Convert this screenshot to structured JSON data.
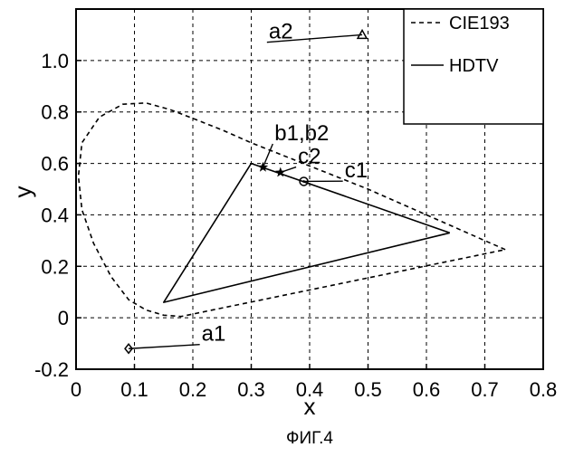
{
  "chart_data": {
    "type": "line",
    "caption": "ФИГ.4",
    "xlabel": "x",
    "ylabel": "y",
    "xlim": [
      0,
      0.8
    ],
    "ylim": [
      -0.2,
      1.2
    ],
    "xticks": [
      0,
      0.1,
      0.2,
      0.3,
      0.4,
      0.5,
      0.6,
      0.7,
      0.8
    ],
    "xtick_labels": [
      "0",
      "0.1",
      "0.2",
      "0.3",
      "0.4",
      "0.5",
      "0.6",
      "0.7",
      "0.8"
    ],
    "yticks": [
      -0.2,
      0,
      0.2,
      0.4,
      0.6,
      0.8,
      1.0
    ],
    "ytick_labels": [
      "-0.2",
      "0",
      "0.2",
      "0.4",
      "0.6",
      "0.8",
      "1.0"
    ],
    "grid": true,
    "legend_position": "top-right",
    "series": [
      {
        "name": "CIE193",
        "style": "dashed",
        "color": "#000000",
        "x": [
          0.735,
          0.7,
          0.66,
          0.62,
          0.58,
          0.54,
          0.5,
          0.45,
          0.4,
          0.35,
          0.3,
          0.25,
          0.2,
          0.16,
          0.12,
          0.08,
          0.04,
          0.01,
          0.004,
          0.01,
          0.03,
          0.06,
          0.09,
          0.12,
          0.15,
          0.18,
          0.735
        ],
        "y": [
          0.265,
          0.3,
          0.34,
          0.38,
          0.42,
          0.46,
          0.5,
          0.545,
          0.59,
          0.635,
          0.68,
          0.73,
          0.775,
          0.81,
          0.835,
          0.83,
          0.78,
          0.68,
          0.55,
          0.42,
          0.29,
          0.16,
          0.07,
          0.03,
          0.01,
          0.005,
          0.265
        ]
      },
      {
        "name": "HDTV",
        "style": "solid",
        "color": "#000000",
        "x": [
          0.64,
          0.3,
          0.15,
          0.64
        ],
        "y": [
          0.33,
          0.6,
          0.06,
          0.33
        ]
      }
    ],
    "points": [
      {
        "label": "a1",
        "x": 0.09,
        "y": -0.12,
        "marker": "diamond",
        "label_x": 0.215,
        "label_y": -0.09
      },
      {
        "label": "a2",
        "x": 0.49,
        "y": 1.1,
        "marker": "triangle",
        "label_x": 0.33,
        "label_y": 1.085
      },
      {
        "label": "b1,b2",
        "x": 0.32,
        "y": 0.585,
        "marker": "star",
        "label_x": 0.34,
        "label_y": 0.69
      },
      {
        "label": "c2",
        "x": 0.35,
        "y": 0.565,
        "marker": "star",
        "label_x": 0.38,
        "label_y": 0.6
      },
      {
        "label": "c1",
        "x": 0.39,
        "y": 0.53,
        "marker": "circle",
        "label_x": 0.46,
        "label_y": 0.545
      }
    ]
  }
}
